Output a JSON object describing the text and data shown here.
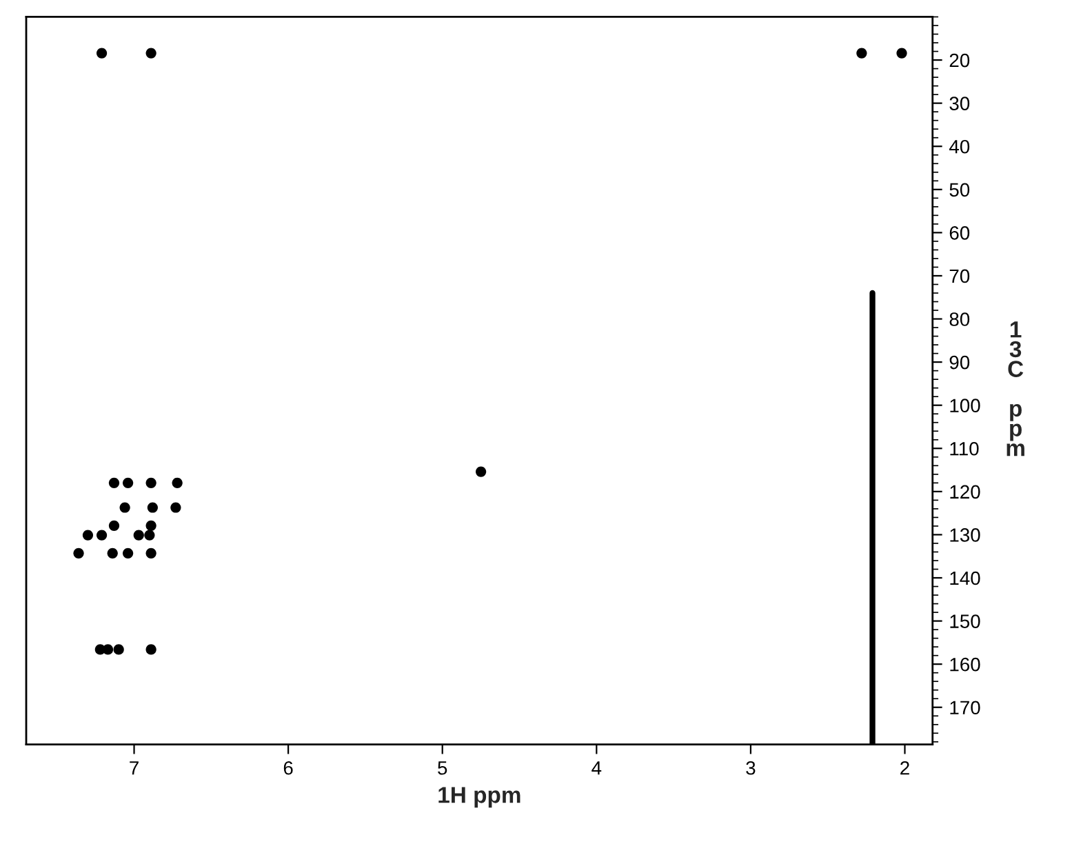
{
  "chart_data": {
    "type": "scatter",
    "xlabel": "1H ppm",
    "ylabel": "13C ppm",
    "xlim": [
      7.7,
      1.82
    ],
    "ylim": [
      178.6,
      10
    ],
    "xticks": [
      7,
      6,
      5,
      4,
      3,
      2
    ],
    "yticks": [
      20,
      30,
      40,
      50,
      60,
      70,
      80,
      90,
      100,
      110,
      120,
      130,
      140,
      150,
      160,
      170
    ],
    "grid": false,
    "series": [
      {
        "marker": "circle",
        "color": "#000000",
        "x": [
          7.21,
          6.89,
          2.28,
          2.02,
          4.75,
          7.13,
          7.04,
          6.89,
          6.72,
          7.06,
          6.88,
          6.73,
          7.13,
          6.89,
          7.3,
          7.21,
          6.97,
          6.9,
          7.36,
          7.14,
          7.04,
          6.89,
          7.22,
          7.17,
          7.1,
          6.89
        ],
        "values": [
          18.4,
          18.4,
          18.4,
          18.4,
          115.4,
          118.0,
          118.0,
          118.0,
          118.0,
          123.7,
          123.7,
          123.7,
          127.9,
          127.9,
          130.1,
          130.1,
          130.1,
          130.1,
          134.3,
          134.3,
          134.3,
          134.3,
          156.6,
          156.6,
          156.6,
          156.6
        ]
      },
      {
        "type": "line",
        "color": "#000000",
        "x": [
          2.21,
          2.21
        ],
        "values": [
          74,
          178.6
        ]
      }
    ]
  }
}
